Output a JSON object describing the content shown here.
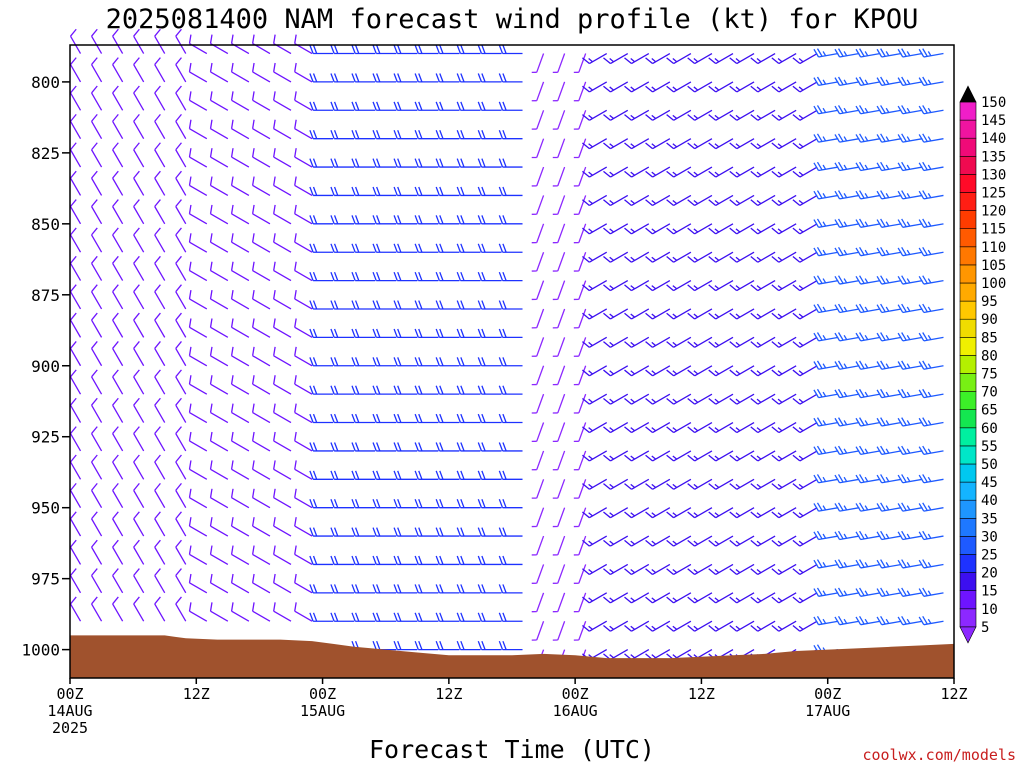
{
  "chart_data": {
    "type": "wind-barb-time-height",
    "title": "2025081400 NAM forecast wind profile (kt) for KPOU",
    "xlabel": "Forecast Time (UTC)",
    "ylabel": "",
    "x_ticks": [
      {
        "hour": 0,
        "lines": [
          "00Z",
          "14AUG",
          "2025"
        ]
      },
      {
        "hour": 12,
        "lines": [
          "12Z"
        ]
      },
      {
        "hour": 24,
        "lines": [
          "00Z",
          "15AUG"
        ]
      },
      {
        "hour": 36,
        "lines": [
          "12Z"
        ]
      },
      {
        "hour": 48,
        "lines": [
          "00Z",
          "16AUG"
        ]
      },
      {
        "hour": 60,
        "lines": [
          "12Z"
        ]
      },
      {
        "hour": 72,
        "lines": [
          "00Z",
          "17AUG"
        ]
      },
      {
        "hour": 84,
        "lines": [
          "12Z"
        ]
      }
    ],
    "xlim": [
      0,
      84
    ],
    "y_ticks": [
      800,
      825,
      850,
      875,
      900,
      925,
      950,
      975,
      1000
    ],
    "ylim": [
      1010,
      787
    ],
    "y_unit": "hPa",
    "colorbar": {
      "unit": "kt",
      "levels": [
        5,
        10,
        15,
        20,
        25,
        30,
        35,
        40,
        45,
        50,
        55,
        60,
        65,
        70,
        75,
        80,
        85,
        90,
        95,
        100,
        105,
        110,
        115,
        120,
        125,
        130,
        135,
        140,
        145,
        150
      ],
      "colors": [
        "#8c28ff",
        "#6e14ff",
        "#3c0ff0",
        "#1e32ff",
        "#1e5aff",
        "#1e78ff",
        "#1e96ff",
        "#14b4ff",
        "#00c8f0",
        "#00e6c8",
        "#00f0a0",
        "#14e650",
        "#3cf028",
        "#78f014",
        "#b4f000",
        "#f0f000",
        "#f0dc00",
        "#ffc800",
        "#ffaa00",
        "#ff9600",
        "#ff7800",
        "#ff5a00",
        "#ff3c00",
        "#ff1e14",
        "#ff0a28",
        "#f00a50",
        "#f00a78",
        "#f014a0",
        "#f01ec8",
        "#f028e6"
      ],
      "end_colors": [
        "#8c28ff",
        "#000000"
      ]
    },
    "surface_pressure": [
      {
        "hour": 0,
        "p": 995
      },
      {
        "hour": 3,
        "p": 995
      },
      {
        "hour": 6,
        "p": 995
      },
      {
        "hour": 9,
        "p": 995
      },
      {
        "hour": 10,
        "p": 995.5
      },
      {
        "hour": 11,
        "p": 996
      },
      {
        "hour": 14,
        "p": 996.5
      },
      {
        "hour": 17,
        "p": 996.5
      },
      {
        "hour": 20,
        "p": 996.5
      },
      {
        "hour": 23,
        "p": 997
      },
      {
        "hour": 25,
        "p": 998
      },
      {
        "hour": 27,
        "p": 999
      },
      {
        "hour": 30,
        "p": 1000
      },
      {
        "hour": 33,
        "p": 1001
      },
      {
        "hour": 36,
        "p": 1002
      },
      {
        "hour": 39,
        "p": 1002
      },
      {
        "hour": 42,
        "p": 1002
      },
      {
        "hour": 45,
        "p": 1001.5
      },
      {
        "hour": 48,
        "p": 1002
      },
      {
        "hour": 51,
        "p": 1003
      },
      {
        "hour": 54,
        "p": 1003
      },
      {
        "hour": 57,
        "p": 1003
      },
      {
        "hour": 60,
        "p": 1002.5
      },
      {
        "hour": 63,
        "p": 1002
      },
      {
        "hour": 66,
        "p": 1001.5
      },
      {
        "hour": 69,
        "p": 1000.5
      },
      {
        "hour": 72,
        "p": 1000
      },
      {
        "hour": 75,
        "p": 999.5
      },
      {
        "hour": 78,
        "p": 999
      },
      {
        "hour": 81,
        "p": 998.5
      },
      {
        "hour": 84,
        "p": 998
      }
    ],
    "surface_color": "#a0522d",
    "wind_field": {
      "hour_step": 1,
      "levels": [
        790,
        800,
        810,
        820,
        830,
        840,
        850,
        860,
        870,
        880,
        890,
        900,
        910,
        920,
        930,
        940,
        950,
        960,
        970,
        980,
        990,
        1000
      ],
      "regimes": [
        {
          "hours": [
            0,
            12
          ],
          "dir_deg": 330,
          "speed_kt": 10
        },
        {
          "hours": [
            12,
            24
          ],
          "dir_deg": 300,
          "speed_kt": 12
        },
        {
          "hours": [
            24,
            44
          ],
          "dir_deg": 270,
          "speed_kt": 22
        },
        {
          "hours": [
            44,
            50
          ],
          "dir_deg": 200,
          "speed_kt": 8
        },
        {
          "hours": [
            50,
            72
          ],
          "dir_deg": 240,
          "speed_kt": 18
        },
        {
          "hours": [
            72,
            84
          ],
          "dir_deg": 260,
          "speed_kt": 25
        }
      ]
    }
  },
  "credit": "coolwx.com/models"
}
